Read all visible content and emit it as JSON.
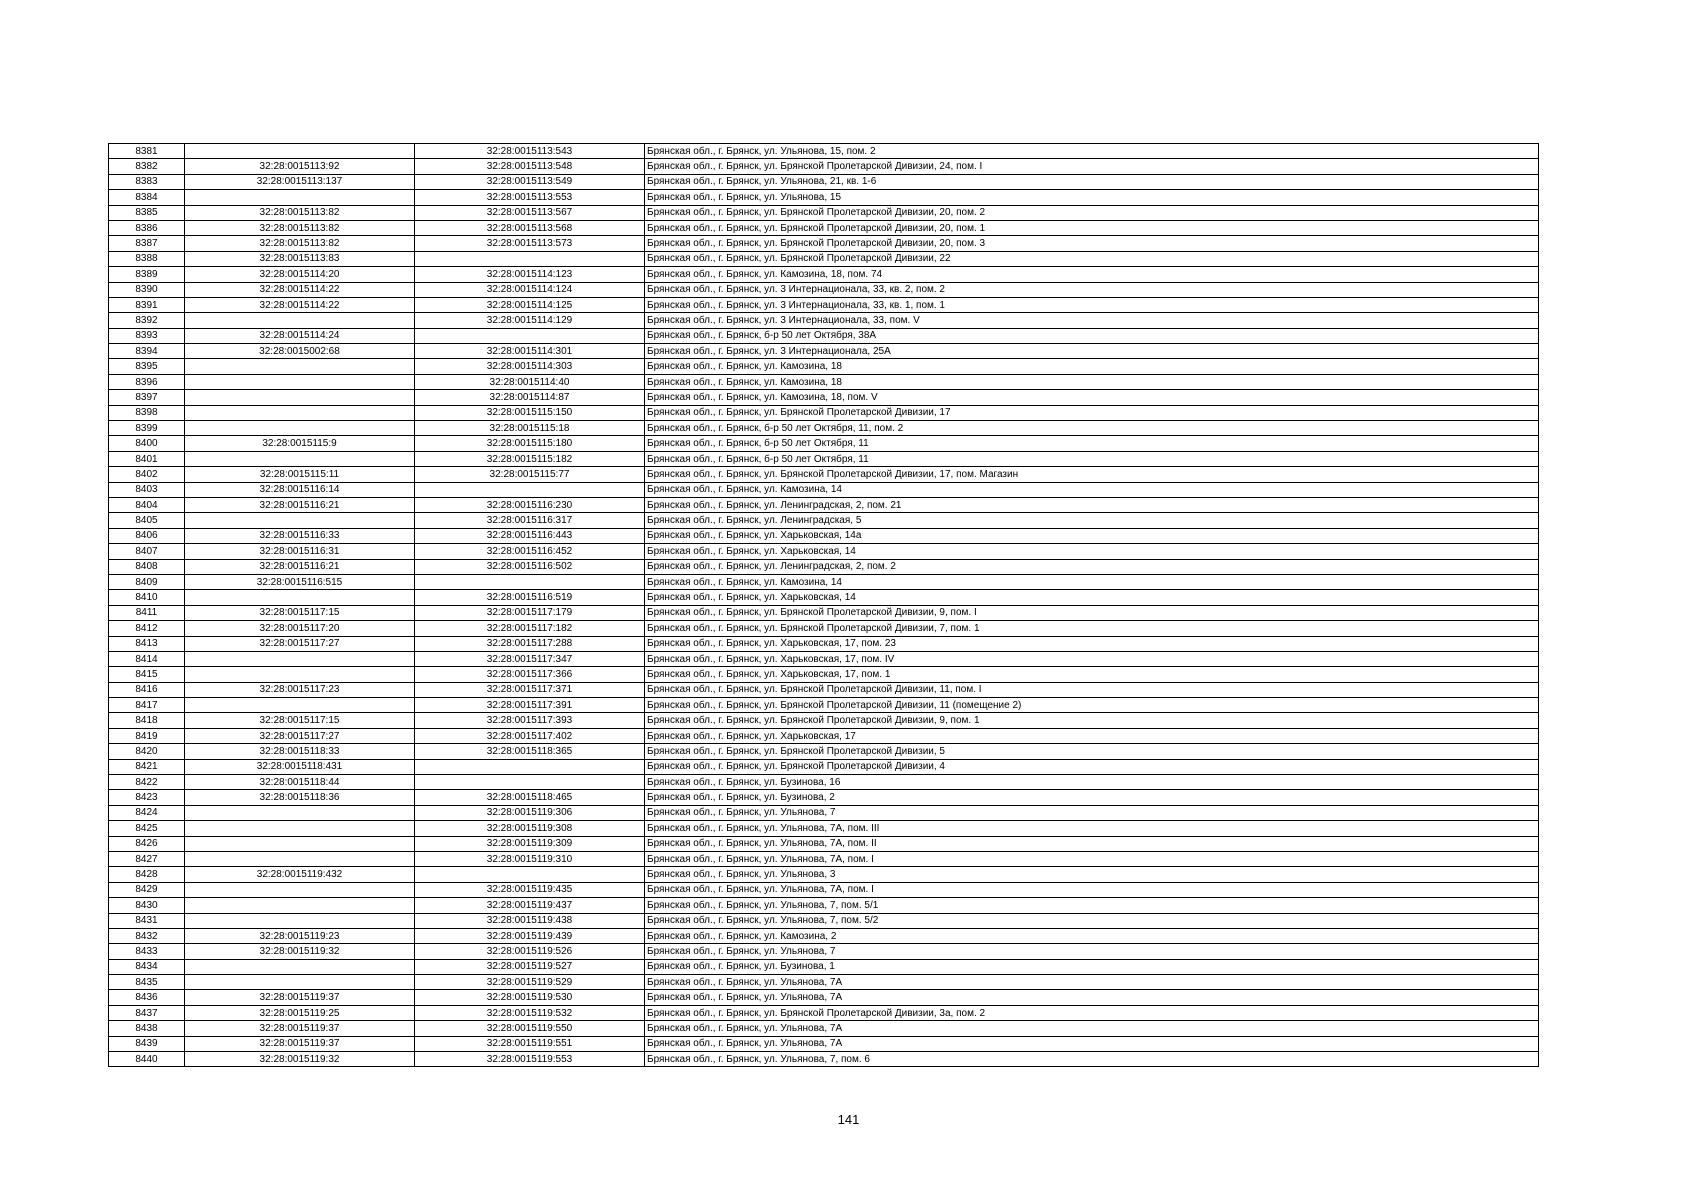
{
  "rows": [
    [
      "8381",
      "",
      "32:28:0015113:543",
      "Брянская обл., г. Брянск, ул. Ульянова, 15, пом. 2"
    ],
    [
      "8382",
      "32:28:0015113:92",
      "32:28:0015113:548",
      "Брянская обл., г. Брянск, ул. Брянской Пролетарской Дивизии, 24, пом. I"
    ],
    [
      "8383",
      "32:28:0015113:137",
      "32:28:0015113:549",
      "Брянская обл., г. Брянск, ул. Ульянова, 21, кв. 1-6"
    ],
    [
      "8384",
      "",
      "32:28:0015113:553",
      "Брянская обл., г. Брянск, ул. Ульянова, 15"
    ],
    [
      "8385",
      "32:28:0015113:82",
      "32:28:0015113:567",
      "Брянская обл., г. Брянск, ул. Брянской Пролетарской Дивизии, 20, пом. 2"
    ],
    [
      "8386",
      "32:28:0015113:82",
      "32:28:0015113:568",
      "Брянская обл., г. Брянск, ул. Брянской Пролетарской Дивизии, 20, пом. 1"
    ],
    [
      "8387",
      "32:28:0015113:82",
      "32:28:0015113:573",
      "Брянская обл., г. Брянск, ул. Брянской Пролетарской Дивизии, 20, пом. 3"
    ],
    [
      "8388",
      "32:28:0015113:83",
      "",
      "Брянская обл., г. Брянск, ул. Брянской Пролетарской Дивизии, 22"
    ],
    [
      "8389",
      "32:28:0015114:20",
      "32:28:0015114:123",
      "Брянская обл., г. Брянск, ул. Камозина, 18, пом. 74"
    ],
    [
      "8390",
      "32:28:0015114:22",
      "32:28:0015114:124",
      "Брянская обл., г. Брянск, ул. 3 Интернационала, 33, кв. 2, пом. 2"
    ],
    [
      "8391",
      "32:28:0015114:22",
      "32:28:0015114:125",
      "Брянская обл., г. Брянск, ул. 3 Интернационала, 33, кв. 1, пом. 1"
    ],
    [
      "8392",
      "",
      "32:28:0015114:129",
      "Брянская обл., г. Брянск, ул. 3 Интернационала, 33, пом. V"
    ],
    [
      "8393",
      "32:28:0015114:24",
      "",
      "Брянская обл., г. Брянск, б-р 50 лет Октября, 38А"
    ],
    [
      "8394",
      "32:28:0015002:68",
      "32:28:0015114:301",
      "Брянская обл., г. Брянск, ул. 3 Интернационала, 25А"
    ],
    [
      "8395",
      "",
      "32:28:0015114:303",
      "Брянская обл., г. Брянск, ул. Камозина, 18"
    ],
    [
      "8396",
      "",
      "32:28:0015114:40",
      "Брянская обл., г. Брянск, ул. Камозина, 18"
    ],
    [
      "8397",
      "",
      "32:28:0015114:87",
      "Брянская обл., г. Брянск, ул. Камозина, 18, пом. V"
    ],
    [
      "8398",
      "",
      "32:28:0015115:150",
      "Брянская обл., г. Брянск, ул. Брянской Пролетарской Дивизии, 17"
    ],
    [
      "8399",
      "",
      "32:28:0015115:18",
      "Брянская обл., г. Брянск, б-р 50 лет Октября, 11, пом. 2"
    ],
    [
      "8400",
      "32:28:0015115:9",
      "32:28:0015115:180",
      "Брянская обл., г. Брянск, б-р 50 лет Октября, 11"
    ],
    [
      "8401",
      "",
      "32:28:0015115:182",
      "Брянская обл., г. Брянск, б-р 50 лет Октября, 11"
    ],
    [
      "8402",
      "32:28:0015115:11",
      "32:28:0015115:77",
      "Брянская обл., г. Брянск, ул. Брянской Пролетарской Дивизии, 17, пом. Магазин"
    ],
    [
      "8403",
      "32:28:0015116:14",
      "",
      "Брянская обл., г. Брянск, ул. Камозина, 14"
    ],
    [
      "8404",
      "32:28:0015116:21",
      "32:28:0015116:230",
      "Брянская обл., г. Брянск, ул. Ленинградская, 2, пом. 21"
    ],
    [
      "8405",
      "",
      "32:28:0015116:317",
      "Брянская обл., г. Брянск, ул. Ленинградская, 5"
    ],
    [
      "8406",
      "32:28:0015116:33",
      "32:28:0015116:443",
      "Брянская обл., г. Брянск, ул. Харьковская, 14а"
    ],
    [
      "8407",
      "32:28:0015116:31",
      "32:28:0015116:452",
      "Брянская обл., г. Брянск, ул. Харьковская, 14"
    ],
    [
      "8408",
      "32:28:0015116:21",
      "32:28:0015116:502",
      "Брянская обл., г. Брянск, ул. Ленинградская, 2, пом. 2"
    ],
    [
      "8409",
      "32:28:0015116:515",
      "",
      "Брянская обл., г. Брянск, ул. Камозина, 14"
    ],
    [
      "8410",
      "",
      "32:28:0015116:519",
      "Брянская обл., г. Брянск, ул. Харьковская, 14"
    ],
    [
      "8411",
      "32:28:0015117:15",
      "32:28:0015117:179",
      "Брянская обл., г. Брянск, ул. Брянской Пролетарской Дивизии, 9, пом. I"
    ],
    [
      "8412",
      "32:28:0015117:20",
      "32:28:0015117:182",
      "Брянская обл., г. Брянск, ул. Брянской Пролетарской Дивизии, 7, пом. 1"
    ],
    [
      "8413",
      "32:28:0015117:27",
      "32:28:0015117:288",
      "Брянская обл., г. Брянск, ул. Харьковская, 17, пом. 23"
    ],
    [
      "8414",
      "",
      "32:28:0015117:347",
      "Брянская обл., г. Брянск, ул. Харьковская, 17, пом. IV"
    ],
    [
      "8415",
      "",
      "32:28:0015117:366",
      "Брянская обл., г. Брянск, ул. Харьковская, 17, пом. 1"
    ],
    [
      "8416",
      "32:28:0015117:23",
      "32:28:0015117:371",
      "Брянская обл., г. Брянск, ул. Брянской Пролетарской Дивизии, 11, пом. I"
    ],
    [
      "8417",
      "",
      "32:28:0015117:391",
      "Брянская обл., г. Брянск, ул. Брянской Пролетарской Дивизии, 11 (помещение 2)"
    ],
    [
      "8418",
      "32:28:0015117:15",
      "32:28:0015117:393",
      "Брянская обл., г. Брянск, ул. Брянской Пролетарской Дивизии, 9, пом. 1"
    ],
    [
      "8419",
      "32:28:0015117:27",
      "32:28:0015117:402",
      "Брянская обл., г. Брянск, ул. Харьковская, 17"
    ],
    [
      "8420",
      "32:28:0015118:33",
      "32:28:0015118:365",
      "Брянская обл., г. Брянск, ул. Брянской Пролетарской Дивизии, 5"
    ],
    [
      "8421",
      "32:28:0015118:431",
      "",
      "Брянская обл., г. Брянск, ул. Брянской Пролетарской Дивизии, 4"
    ],
    [
      "8422",
      "32:28:0015118:44",
      "",
      "Брянская обл., г. Брянск, ул. Бузинова, 16"
    ],
    [
      "8423",
      "32:28:0015118:36",
      "32:28:0015118:465",
      "Брянская обл., г. Брянск, ул. Бузинова, 2"
    ],
    [
      "8424",
      "",
      "32:28:0015119:306",
      "Брянская обл., г. Брянск, ул. Ульянова, 7"
    ],
    [
      "8425",
      "",
      "32:28:0015119:308",
      "Брянская обл., г. Брянск, ул. Ульянова, 7А, пом. III"
    ],
    [
      "8426",
      "",
      "32:28:0015119:309",
      "Брянская обл., г. Брянск, ул. Ульянова, 7А, пом. II"
    ],
    [
      "8427",
      "",
      "32:28:0015119:310",
      "Брянская обл., г. Брянск, ул. Ульянова, 7А, пом. I"
    ],
    [
      "8428",
      "32:28:0015119:432",
      "",
      "Брянская обл., г. Брянск, ул. Ульянова, 3"
    ],
    [
      "8429",
      "",
      "32:28:0015119:435",
      "Брянская обл., г. Брянск, ул. Ульянова, 7А, пом. I"
    ],
    [
      "8430",
      "",
      "32:28:0015119:437",
      "Брянская обл., г. Брянск, ул. Ульянова, 7, пом. 5/1"
    ],
    [
      "8431",
      "",
      "32:28:0015119:438",
      "Брянская обл., г. Брянск, ул. Ульянова, 7, пом. 5/2"
    ],
    [
      "8432",
      "32:28:0015119:23",
      "32:28:0015119:439",
      "Брянская обл., г. Брянск, ул. Камозина, 2"
    ],
    [
      "8433",
      "32:28:0015119:32",
      "32:28:0015119:526",
      "Брянская обл., г. Брянск, ул. Ульянова, 7"
    ],
    [
      "8434",
      "",
      "32:28:0015119:527",
      "Брянская обл., г. Брянск, ул. Бузинова, 1"
    ],
    [
      "8435",
      "",
      "32:28:0015119:529",
      "Брянская обл., г. Брянск, ул. Ульянова, 7А"
    ],
    [
      "8436",
      "32:28:0015119:37",
      "32:28:0015119:530",
      "Брянская обл., г. Брянск, ул. Ульянова, 7А"
    ],
    [
      "8437",
      "32:28:0015119:25",
      "32:28:0015119:532",
      "Брянская обл., г. Брянск, ул. Брянской Пролетарской Дивизии, 3а, пом. 2"
    ],
    [
      "8438",
      "32:28:0015119:37",
      "32:28:0015119:550",
      "Брянская обл., г. Брянск, ул. Ульянова, 7А"
    ],
    [
      "8439",
      "32:28:0015119:37",
      "32:28:0015119:551",
      "Брянская обл., г. Брянск, ул. Ульянова, 7А"
    ],
    [
      "8440",
      "32:28:0015119:32",
      "32:28:0015119:553",
      "Брянская обл., г. Брянск, ул. Ульянова, 7, пом. 6"
    ]
  ],
  "page_number": "141"
}
